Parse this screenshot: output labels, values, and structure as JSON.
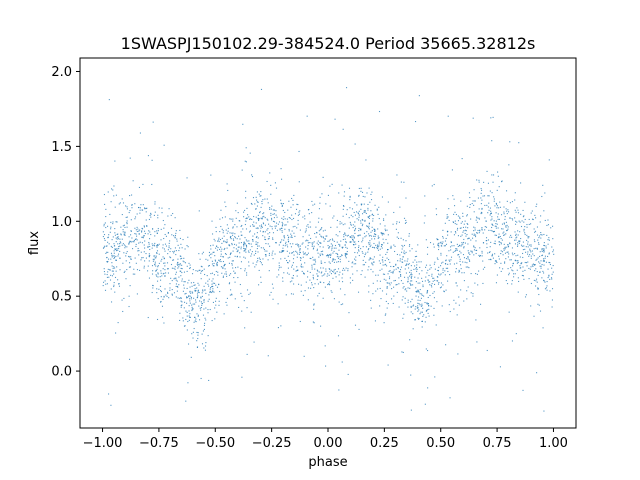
{
  "chart_data": {
    "type": "scatter",
    "title": "1SWASPJ150102.29-384524.0 Period 35665.32812s",
    "xlabel": "phase",
    "ylabel": "flux",
    "xlim": [
      -1.1,
      1.1
    ],
    "ylim": [
      -0.38,
      2.09
    ],
    "xticks": [
      -1.0,
      -0.75,
      -0.5,
      -0.25,
      0.0,
      0.25,
      0.5,
      0.75,
      1.0
    ],
    "xtick_labels": [
      "−1.00",
      "−0.75",
      "−0.50",
      "−0.25",
      "0.00",
      "0.25",
      "0.50",
      "0.75",
      "1.00"
    ],
    "yticks": [
      0.0,
      0.5,
      1.0,
      1.5,
      2.0
    ],
    "ytick_labels": [
      "0.0",
      "0.5",
      "1.0",
      "1.5",
      "2.0"
    ],
    "grid": false,
    "point_color": "#1f77b4",
    "series": [
      {
        "x_range": [
          -1.0,
          1.0
        ],
        "trend": {
          "phase": [
            -1.0,
            -0.85,
            -0.7,
            -0.58,
            -0.45,
            -0.3,
            -0.15,
            0.0,
            0.15,
            0.3,
            0.42,
            0.55,
            0.7,
            0.85,
            1.0
          ],
          "flux": [
            0.8,
            0.9,
            0.75,
            0.45,
            0.8,
            0.95,
            0.85,
            0.75,
            0.92,
            0.75,
            0.5,
            0.8,
            0.95,
            0.85,
            0.72
          ]
        },
        "typical_scatter": 0.15,
        "min_flux": -0.28,
        "max_flux": 2.0
      }
    ]
  }
}
